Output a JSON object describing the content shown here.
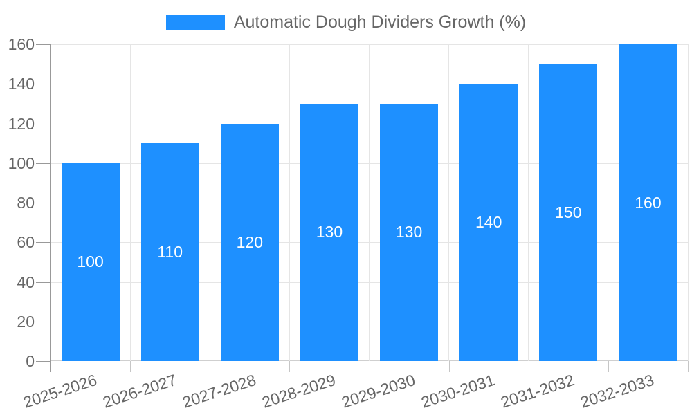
{
  "legend": {
    "label": "Automatic Dough Dividers Growth (%)"
  },
  "chart_data": {
    "type": "bar",
    "title": "Automatic Dough Dividers Growth (%)",
    "categories": [
      "2025-2026",
      "2026-2027",
      "2027-2028",
      "2028-2029",
      "2029-2030",
      "2030-2031",
      "2031-2032",
      "2032-2033"
    ],
    "values": [
      100,
      110,
      120,
      130,
      130,
      140,
      150,
      160
    ],
    "yticks": [
      0,
      20,
      40,
      60,
      80,
      100,
      120,
      140,
      160
    ],
    "ylim": [
      0,
      160
    ],
    "xlabel": "",
    "ylabel": "",
    "grid": true,
    "legend_position": "top-center",
    "bar_labels_inside": true,
    "colors": {
      "bar": "#1E90FF",
      "bar_label_text": "#ffffff",
      "axis_text": "#666666",
      "grid_line": "#e5e5e5",
      "baseline": "#cfcfcf",
      "axis_line": "#999999",
      "tick_line": "#c6c6c6",
      "background": "#ffffff"
    }
  }
}
